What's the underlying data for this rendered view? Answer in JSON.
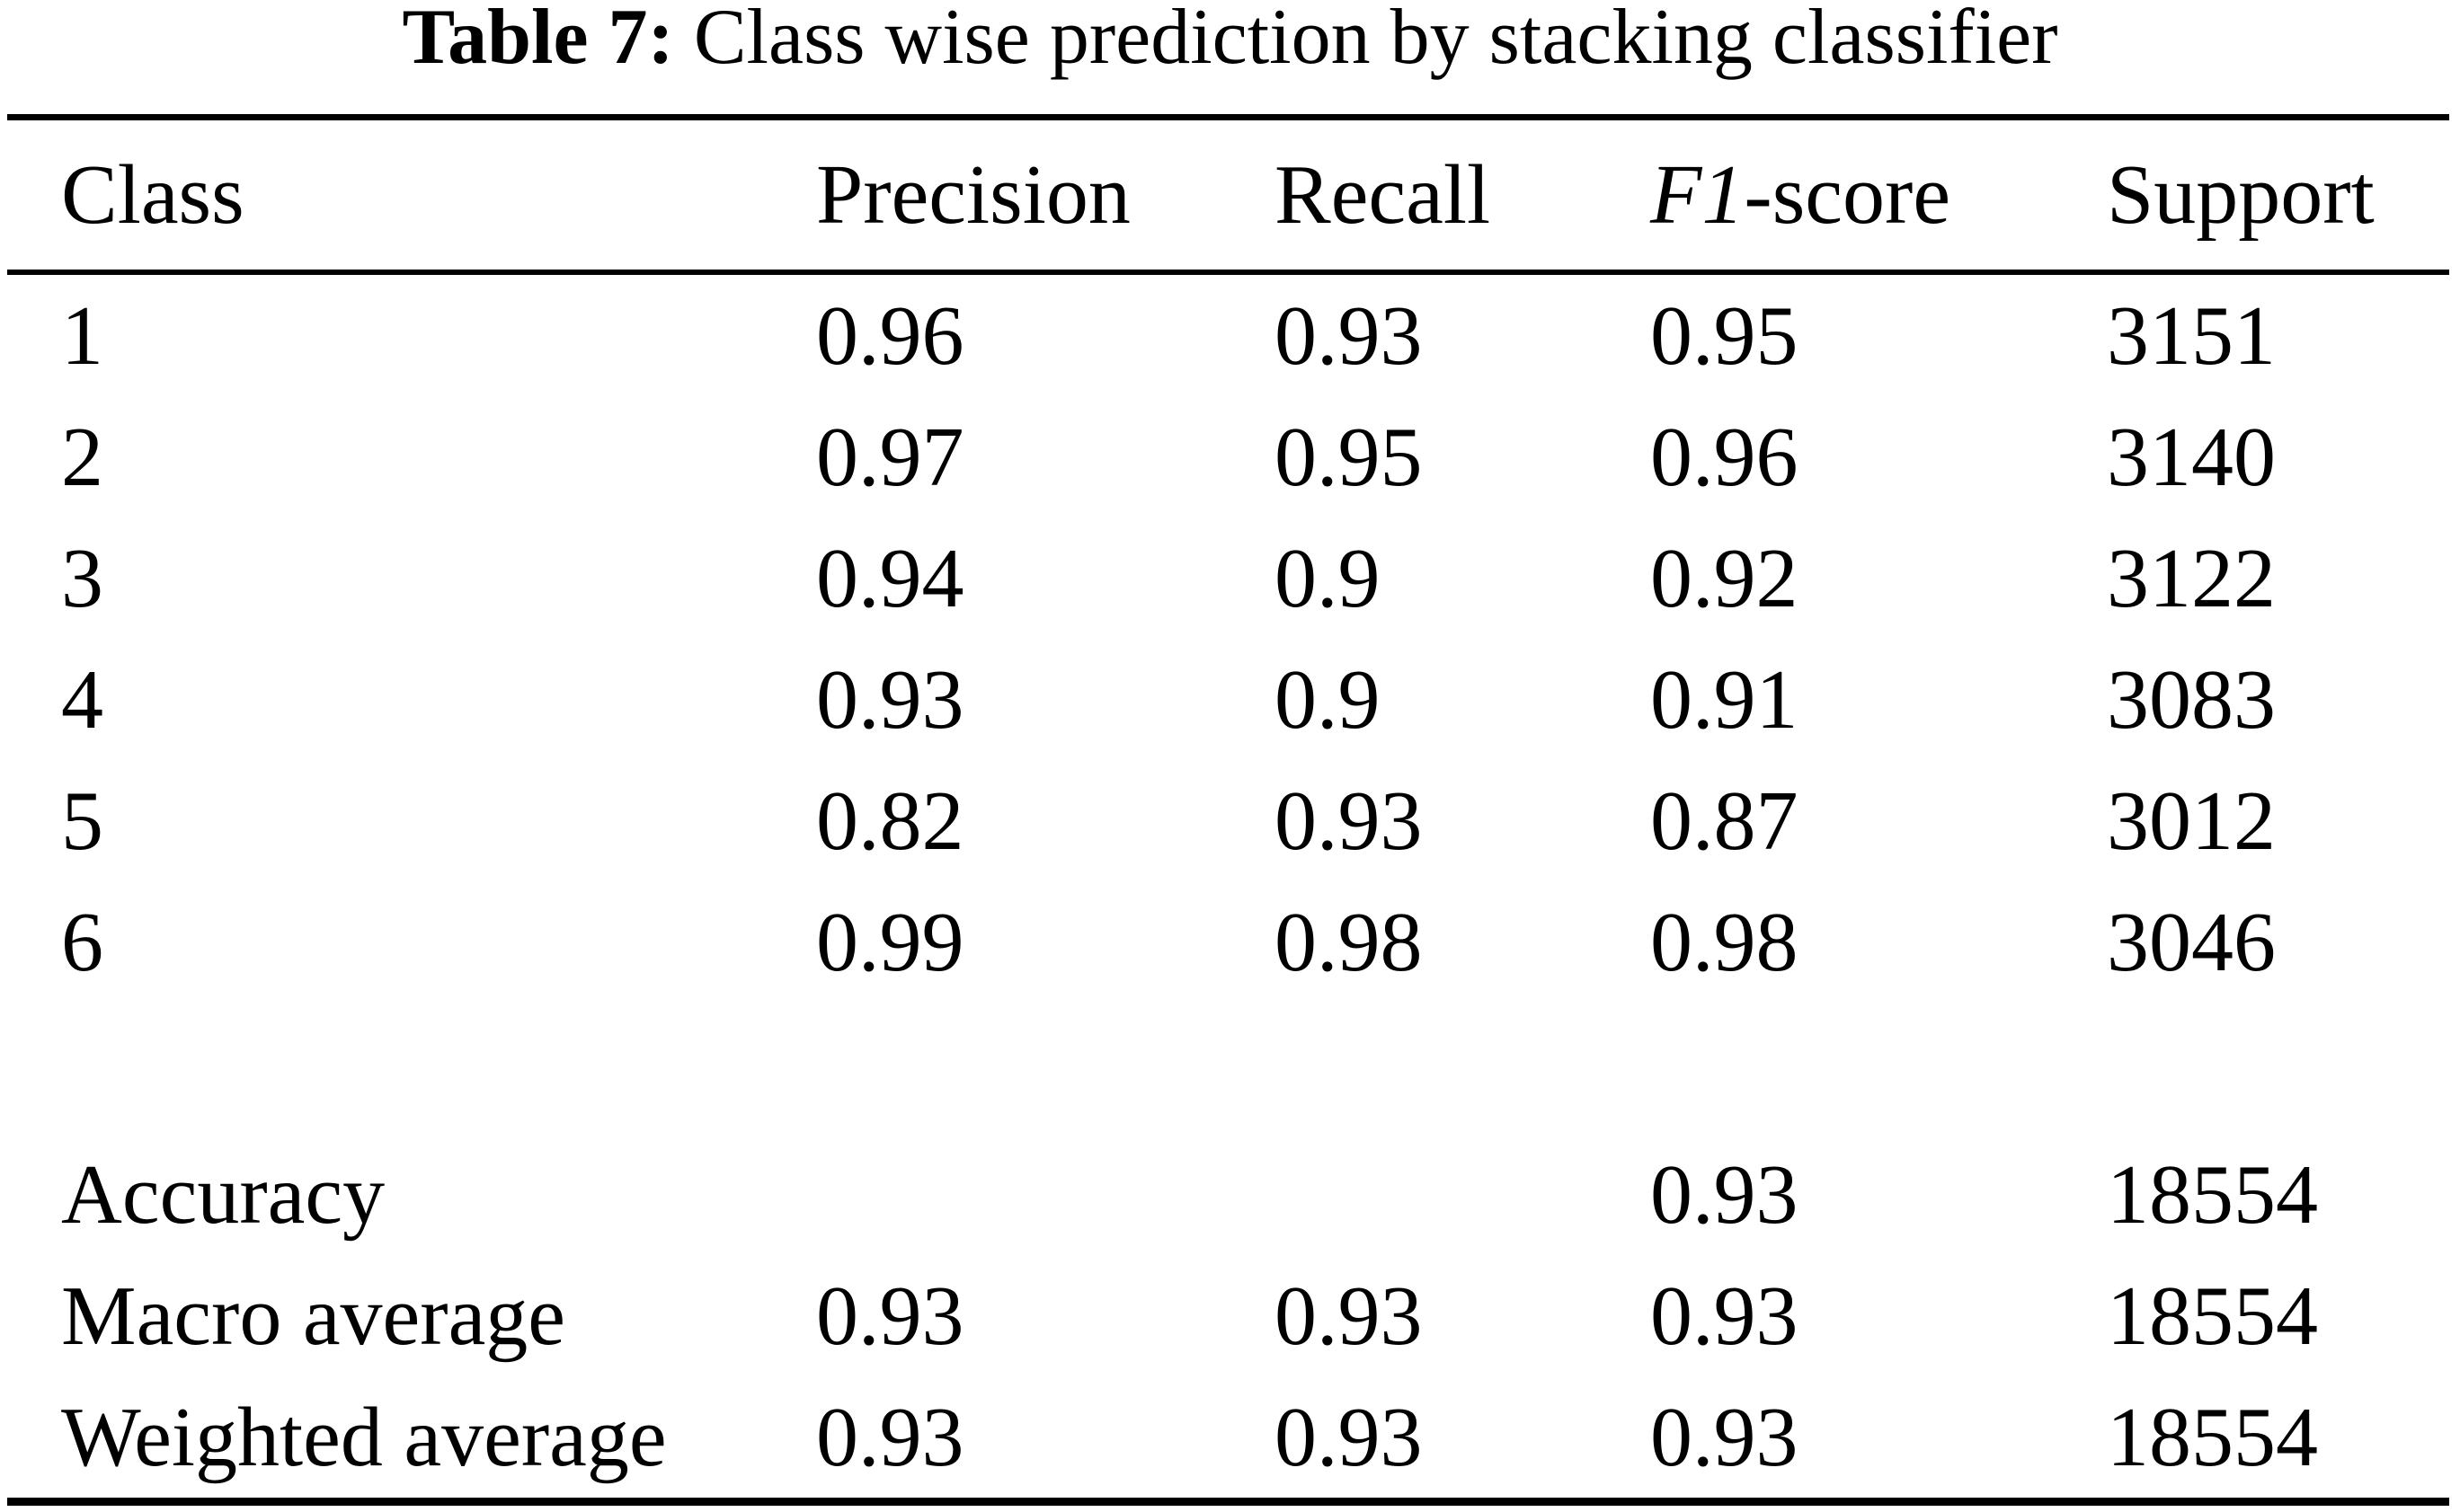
{
  "caption": {
    "label": "Table 7:",
    "text": " Class wise prediction by stacking classifier"
  },
  "table": {
    "headers": {
      "class": "Class",
      "precision": "Precision",
      "recall": "Recall",
      "f1_italic": "F1",
      "f1_suffix": "-score",
      "support": "Support"
    },
    "rows": [
      {
        "class": "1",
        "precision": "0.96",
        "recall": "0.93",
        "f1": "0.95",
        "support": "3151"
      },
      {
        "class": "2",
        "precision": "0.97",
        "recall": "0.95",
        "f1": "0.96",
        "support": "3140"
      },
      {
        "class": "3",
        "precision": "0.94",
        "recall": "0.9",
        "f1": "0.92",
        "support": "3122"
      },
      {
        "class": "4",
        "precision": "0.93",
        "recall": "0.9",
        "f1": "0.91",
        "support": "3083"
      },
      {
        "class": "5",
        "precision": "0.82",
        "recall": "0.93",
        "f1": "0.87",
        "support": "3012"
      },
      {
        "class": "6",
        "precision": "0.99",
        "recall": "0.98",
        "f1": "0.98",
        "support": "3046"
      }
    ],
    "summary_rows": [
      {
        "class": "Accuracy",
        "precision": "",
        "recall": "",
        "f1": "0.93",
        "support": "18554"
      },
      {
        "class": "Macro average",
        "precision": "0.93",
        "recall": "0.93",
        "f1": "0.93",
        "support": "18554"
      },
      {
        "class": "Weighted average",
        "precision": "0.93",
        "recall": "0.93",
        "f1": "0.93",
        "support": "18554"
      }
    ]
  },
  "colors": {
    "background": "#ffffff",
    "text": "#000000",
    "rule": "#000000"
  }
}
